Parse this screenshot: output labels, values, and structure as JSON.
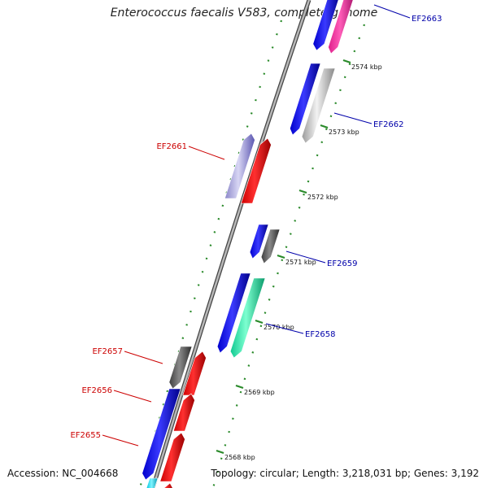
{
  "title": "Enterococcus faecalis V583, complete genome",
  "accession": "Accession: NC_004668",
  "topology": "Topology: circular; Length: 3,218,031 bp; Genes: 3,192",
  "colors": {
    "backbone": "#7a7a7a",
    "tick": "#2a8a2a",
    "label_plus": "#0000aa",
    "label_minus": "#cc0000"
  },
  "ticks": [
    {
      "label": "2574 kbp"
    },
    {
      "label": "2573 kbp"
    },
    {
      "label": "2572 kbp"
    },
    {
      "label": "2571 kbp"
    },
    {
      "label": "2570 kbp"
    },
    {
      "label": "2569 kbp"
    },
    {
      "label": "2568 kbp"
    }
  ],
  "gene_labels": [
    {
      "text": "EF2663",
      "side": "right"
    },
    {
      "text": "EF2662",
      "side": "right"
    },
    {
      "text": "EF2661",
      "side": "left"
    },
    {
      "text": "EF2659",
      "side": "right"
    },
    {
      "text": "EF2658",
      "side": "right"
    },
    {
      "text": "EF2657",
      "side": "left"
    },
    {
      "text": "EF2656",
      "side": "left"
    },
    {
      "text": "EF2655",
      "side": "left"
    }
  ]
}
